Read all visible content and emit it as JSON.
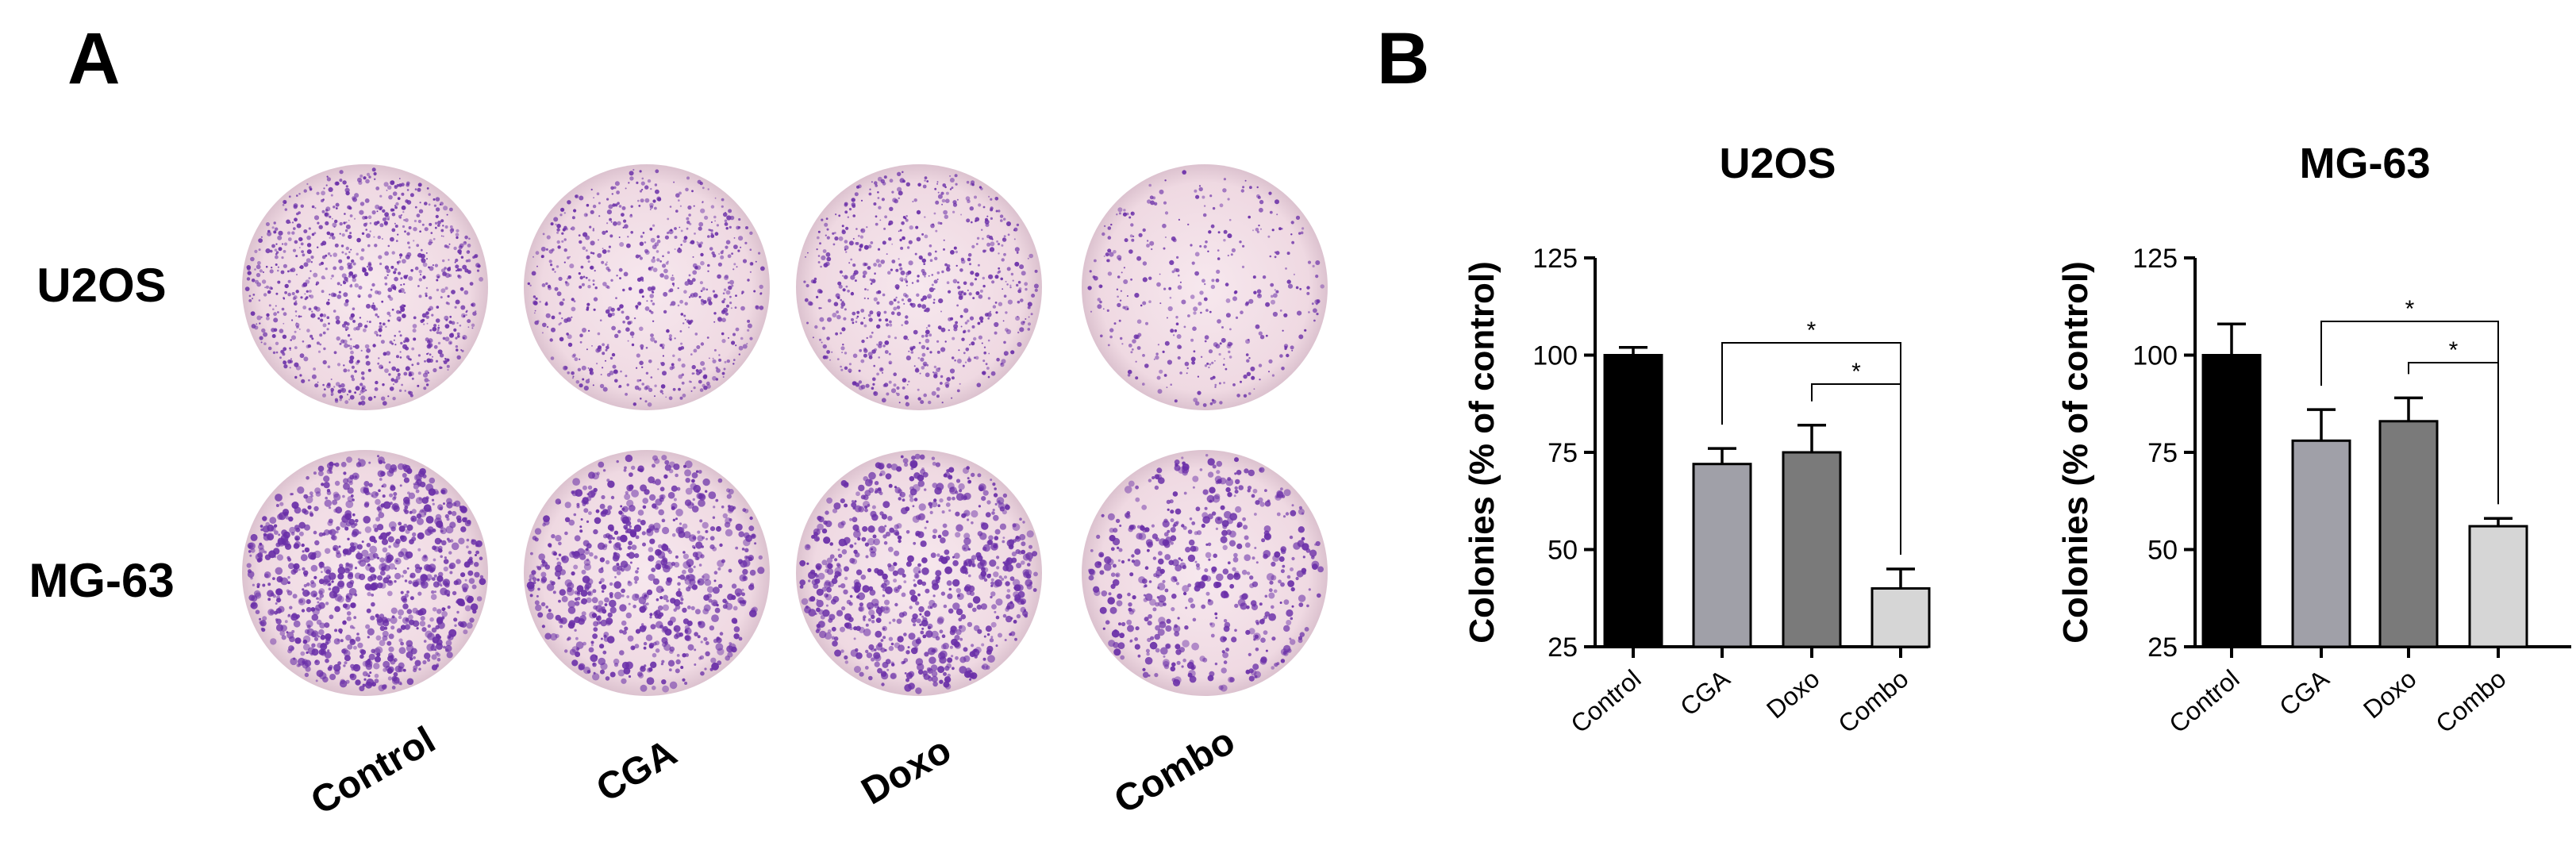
{
  "panels": {
    "a_label": "A",
    "b_label": "B"
  },
  "plates": {
    "rows": [
      "U2OS",
      "MG-63"
    ],
    "columns": [
      "Control",
      "CGA",
      "Doxo",
      "Combo"
    ],
    "stain_color": "#6a2fa8",
    "background_color": "#f2dfe6",
    "relative_density": [
      [
        1.0,
        0.72,
        0.75,
        0.4
      ],
      [
        1.0,
        0.78,
        0.83,
        0.56
      ]
    ]
  },
  "chart_data": [
    {
      "type": "bar",
      "title": "U2OS",
      "xlabel": "",
      "ylabel": "Colonies (% of control)",
      "ylim": [
        25,
        125
      ],
      "yticks": [
        25,
        50,
        75,
        100,
        125
      ],
      "categories": [
        "Control",
        "CGA",
        "Doxo",
        "Combo"
      ],
      "values": [
        100,
        72,
        75,
        40
      ],
      "errors": [
        2,
        4,
        7,
        5
      ],
      "colors": [
        "#000000",
        "#a0a0a8",
        "#7a7a7a",
        "#d6d6d6"
      ],
      "significance": [
        {
          "from": "CGA",
          "to": "Combo",
          "label": "*"
        },
        {
          "from": "Doxo",
          "to": "Combo",
          "label": "*"
        }
      ]
    },
    {
      "type": "bar",
      "title": "MG-63",
      "xlabel": "",
      "ylabel": "Colonies (% of control)",
      "ylim": [
        25,
        125
      ],
      "yticks": [
        25,
        50,
        75,
        100,
        125
      ],
      "categories": [
        "Control",
        "CGA",
        "Doxo",
        "Combo"
      ],
      "values": [
        100,
        78,
        83,
        56
      ],
      "errors": [
        8,
        8,
        6,
        2
      ],
      "colors": [
        "#000000",
        "#a0a0a8",
        "#7a7a7a",
        "#d6d6d6"
      ],
      "significance": [
        {
          "from": "CGA",
          "to": "Combo",
          "label": "*"
        },
        {
          "from": "Doxo",
          "to": "Combo",
          "label": "*"
        }
      ]
    }
  ]
}
